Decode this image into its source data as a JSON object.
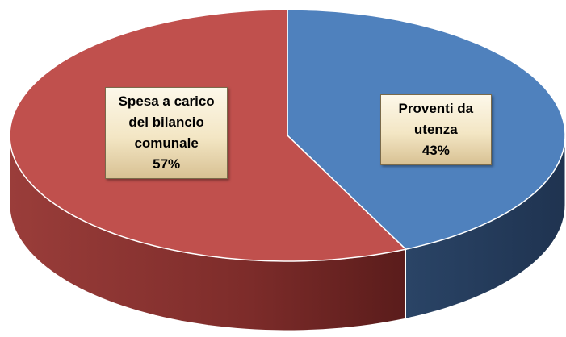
{
  "chart_data": {
    "type": "pie",
    "categories": [
      "Proventi da utenza",
      "Spesa a carico del bilancio comunale"
    ],
    "values": [
      43,
      57
    ],
    "value_labels": [
      "43%",
      "57%"
    ],
    "colors": [
      "#4f81bd",
      "#c0504d"
    ]
  }
}
